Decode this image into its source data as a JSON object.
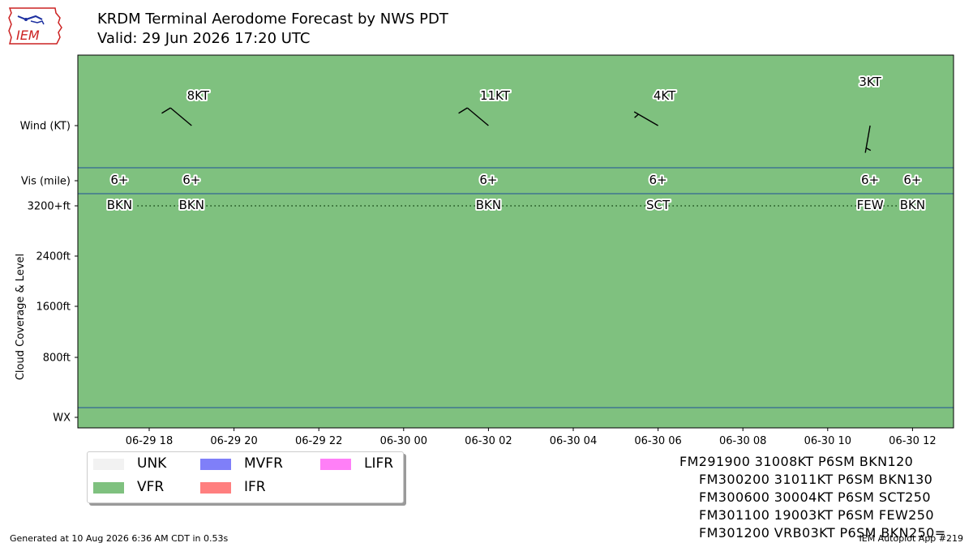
{
  "header": {
    "title": "KRDM Terminal Aerodome Forecast by NWS PDT",
    "valid": "Valid: 29 Jun 2026 17:20 UTC",
    "logo_text": "IEM"
  },
  "chart_data": {
    "type": "scatter",
    "title": "KRDM Terminal Aerodome Forecast by NWS PDT",
    "x_axis": {
      "ticks": [
        "06-29 18",
        "06-29 20",
        "06-29 22",
        "06-30 00",
        "06-30 02",
        "06-30 04",
        "06-30 06",
        "06-30 08",
        "06-30 10",
        "06-30 12"
      ],
      "range_hours": [
        -1.95,
        18.7
      ]
    },
    "y_axis": {
      "label": "Cloud Coverage & Level",
      "ticks": [
        "Wind (KT)",
        "Vis (mile)",
        "3200+ft",
        "2400ft",
        "1600ft",
        "800ft",
        "WX"
      ]
    },
    "flight_category": "VFR",
    "wind": [
      {
        "hour": 1.0,
        "dir": 310,
        "speed": 8,
        "label": "8KT"
      },
      {
        "hour": 8.0,
        "dir": 310,
        "speed": 11,
        "label": "11KT"
      },
      {
        "hour": 12.0,
        "dir": 300,
        "speed": 4,
        "label": "4KT"
      },
      {
        "hour": 17.0,
        "dir": 190,
        "speed": 3,
        "label": "3KT"
      }
    ],
    "visibility": [
      {
        "hour": -0.7,
        "label": "6+"
      },
      {
        "hour": 1.0,
        "label": "6+"
      },
      {
        "hour": 8.0,
        "label": "6+"
      },
      {
        "hour": 12.0,
        "label": "6+"
      },
      {
        "hour": 17.0,
        "label": "6+"
      },
      {
        "hour": 18.0,
        "label": "6+"
      }
    ],
    "clouds": [
      {
        "hour": -0.7,
        "coverage": "BKN"
      },
      {
        "hour": 1.0,
        "coverage": "BKN"
      },
      {
        "hour": 8.0,
        "coverage": "BKN"
      },
      {
        "hour": 12.0,
        "coverage": "SCT"
      },
      {
        "hour": 17.0,
        "coverage": "FEW"
      },
      {
        "hour": 18.0,
        "coverage": "BKN"
      }
    ],
    "legend": [
      {
        "label": "UNK",
        "color": "#f2f2f2"
      },
      {
        "label": "MVFR",
        "color": "#7f7ff9"
      },
      {
        "label": "LIFR",
        "color": "#ff7ff7"
      },
      {
        "label": "VFR",
        "color": "#7fc17f"
      },
      {
        "label": "IFR",
        "color": "#ff7f7f"
      }
    ]
  },
  "taf_lines": [
    "FM291900 31008KT P6SM BKN120",
    "FM300200 31011KT P6SM BKN130",
    "FM300600 30004KT P6SM SCT250",
    "FM301100 19003KT P6SM FEW250",
    "FM301200 VRB03KT P6SM BKN250="
  ],
  "footer": {
    "generated": "Generated at 10 Aug 2026 6:36 AM CDT in 0.53s",
    "app": "IEM Autoplot App #219"
  },
  "colors": {
    "vfr": "#7fc17f",
    "divider": "#1f4e99"
  }
}
